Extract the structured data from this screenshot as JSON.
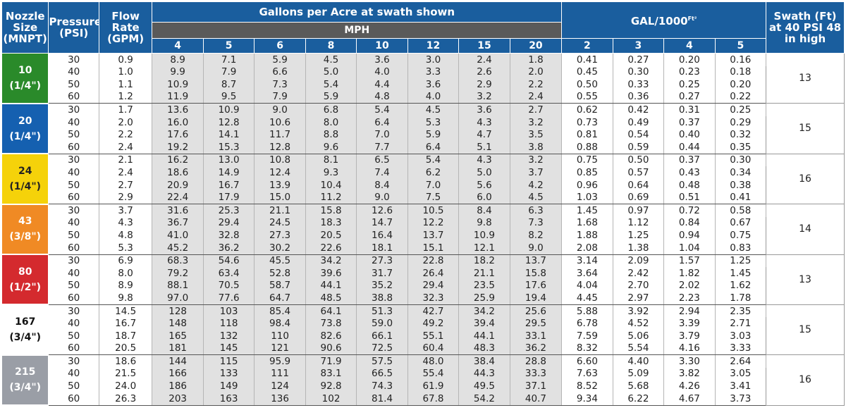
{
  "headers": {
    "nozzle_size": "Nozzle Size (MNPT)",
    "pressure": "Pressure (PSI)",
    "flow_rate": "Flow Rate (GPM)",
    "gpa_group": "Gallons per Acre at swath shown",
    "mph": "MPH",
    "gal1000": "GAL/1000",
    "gal1000_sup": "Ft²",
    "swath": "Swath (Ft) at 40 PSI 48 in high",
    "mph_speeds": [
      "4",
      "5",
      "6",
      "8",
      "10",
      "12",
      "15",
      "20"
    ],
    "gal1000_speeds": [
      "2",
      "3",
      "4",
      "5"
    ]
  },
  "colors": {
    "header_blue": "#1a5e9e",
    "mph_band_gray": "#5a5a5a",
    "gpa_shade": "#e1e1e1"
  },
  "nozzles": [
    {
      "size": "10",
      "thread": "(1/4\")",
      "color": "#2a8a2a",
      "text_color": "#ffffff",
      "swath": "13",
      "rows": [
        {
          "psi": "30",
          "gpm": "0.9",
          "gpa": [
            "8.9",
            "7.1",
            "5.9",
            "4.5",
            "3.6",
            "3.0",
            "2.4",
            "1.8"
          ],
          "gal1000": [
            "0.41",
            "0.27",
            "0.20",
            "0.16"
          ]
        },
        {
          "psi": "40",
          "gpm": "1.0",
          "gpa": [
            "9.9",
            "7.9",
            "6.6",
            "5.0",
            "4.0",
            "3.3",
            "2.6",
            "2.0"
          ],
          "gal1000": [
            "0.45",
            "0.30",
            "0.23",
            "0.18"
          ]
        },
        {
          "psi": "50",
          "gpm": "1.1",
          "gpa": [
            "10.9",
            "8.7",
            "7.3",
            "5.4",
            "4.4",
            "3.6",
            "2.9",
            "2.2"
          ],
          "gal1000": [
            "0.50",
            "0.33",
            "0.25",
            "0.20"
          ]
        },
        {
          "psi": "60",
          "gpm": "1.2",
          "gpa": [
            "11.9",
            "9.5",
            "7.9",
            "5.9",
            "4.8",
            "4.0",
            "3.2",
            "2.4"
          ],
          "gal1000": [
            "0.55",
            "0.36",
            "0.27",
            "0.22"
          ]
        }
      ]
    },
    {
      "size": "20",
      "thread": "(1/4\")",
      "color": "#1560b0",
      "text_color": "#ffffff",
      "swath": "15",
      "rows": [
        {
          "psi": "30",
          "gpm": "1.7",
          "gpa": [
            "13.6",
            "10.9",
            "9.0",
            "6.8",
            "5.4",
            "4.5",
            "3.6",
            "2.7"
          ],
          "gal1000": [
            "0.62",
            "0.42",
            "0.31",
            "0.25"
          ]
        },
        {
          "psi": "40",
          "gpm": "2.0",
          "gpa": [
            "16.0",
            "12.8",
            "10.6",
            "8.0",
            "6.4",
            "5.3",
            "4.3",
            "3.2"
          ],
          "gal1000": [
            "0.73",
            "0.49",
            "0.37",
            "0.29"
          ]
        },
        {
          "psi": "50",
          "gpm": "2.2",
          "gpa": [
            "17.6",
            "14.1",
            "11.7",
            "8.8",
            "7.0",
            "5.9",
            "4.7",
            "3.5"
          ],
          "gal1000": [
            "0.81",
            "0.54",
            "0.40",
            "0.32"
          ]
        },
        {
          "psi": "60",
          "gpm": "2.4",
          "gpa": [
            "19.2",
            "15.3",
            "12.8",
            "9.6",
            "7.7",
            "6.4",
            "5.1",
            "3.8"
          ],
          "gal1000": [
            "0.88",
            "0.59",
            "0.44",
            "0.35"
          ]
        }
      ]
    },
    {
      "size": "24",
      "thread": "(1/4\")",
      "color": "#f5d20a",
      "text_color": "#222222",
      "swath": "16",
      "rows": [
        {
          "psi": "30",
          "gpm": "2.1",
          "gpa": [
            "16.2",
            "13.0",
            "10.8",
            "8.1",
            "6.5",
            "5.4",
            "4.3",
            "3.2"
          ],
          "gal1000": [
            "0.75",
            "0.50",
            "0.37",
            "0.30"
          ]
        },
        {
          "psi": "40",
          "gpm": "2.4",
          "gpa": [
            "18.6",
            "14.9",
            "12.4",
            "9.3",
            "7.4",
            "6.2",
            "5.0",
            "3.7"
          ],
          "gal1000": [
            "0.85",
            "0.57",
            "0.43",
            "0.34"
          ]
        },
        {
          "psi": "50",
          "gpm": "2.7",
          "gpa": [
            "20.9",
            "16.7",
            "13.9",
            "10.4",
            "8.4",
            "7.0",
            "5.6",
            "4.2"
          ],
          "gal1000": [
            "0.96",
            "0.64",
            "0.48",
            "0.38"
          ]
        },
        {
          "psi": "60",
          "gpm": "2.9",
          "gpa": [
            "22.4",
            "17.9",
            "15.0",
            "11.2",
            "9.0",
            "7.5",
            "6.0",
            "4.5"
          ],
          "gal1000": [
            "1.03",
            "0.69",
            "0.51",
            "0.41"
          ]
        }
      ]
    },
    {
      "size": "43",
      "thread": "(3/8\")",
      "color": "#f08a24",
      "text_color": "#ffffff",
      "swath": "14",
      "rows": [
        {
          "psi": "30",
          "gpm": "3.7",
          "gpa": [
            "31.6",
            "25.3",
            "21.1",
            "15.8",
            "12.6",
            "10.5",
            "8.4",
            "6.3"
          ],
          "gal1000": [
            "1.45",
            "0.97",
            "0.72",
            "0.58"
          ]
        },
        {
          "psi": "40",
          "gpm": "4.3",
          "gpa": [
            "36.7",
            "29.4",
            "24.5",
            "18.3",
            "14.7",
            "12.2",
            "9.8",
            "7.3"
          ],
          "gal1000": [
            "1.68",
            "1.12",
            "0.84",
            "0.67"
          ]
        },
        {
          "psi": "50",
          "gpm": "4.8",
          "gpa": [
            "41.0",
            "32.8",
            "27.3",
            "20.5",
            "16.4",
            "13.7",
            "10.9",
            "8.2"
          ],
          "gal1000": [
            "1.88",
            "1.25",
            "0.94",
            "0.75"
          ]
        },
        {
          "psi": "60",
          "gpm": "5.3",
          "gpa": [
            "45.2",
            "36.2",
            "30.2",
            "22.6",
            "18.1",
            "15.1",
            "12.1",
            "9.0"
          ],
          "gal1000": [
            "2.08",
            "1.38",
            "1.04",
            "0.83"
          ]
        }
      ]
    },
    {
      "size": "80",
      "thread": "(1/2\")",
      "color": "#d42a2e",
      "text_color": "#ffffff",
      "swath": "13",
      "rows": [
        {
          "psi": "30",
          "gpm": "6.9",
          "gpa": [
            "68.3",
            "54.6",
            "45.5",
            "34.2",
            "27.3",
            "22.8",
            "18.2",
            "13.7"
          ],
          "gal1000": [
            "3.14",
            "2.09",
            "1.57",
            "1.25"
          ]
        },
        {
          "psi": "40",
          "gpm": "8.0",
          "gpa": [
            "79.2",
            "63.4",
            "52.8",
            "39.6",
            "31.7",
            "26.4",
            "21.1",
            "15.8"
          ],
          "gal1000": [
            "3.64",
            "2.42",
            "1.82",
            "1.45"
          ]
        },
        {
          "psi": "50",
          "gpm": "8.9",
          "gpa": [
            "88.1",
            "70.5",
            "58.7",
            "44.1",
            "35.2",
            "29.4",
            "23.5",
            "17.6"
          ],
          "gal1000": [
            "4.04",
            "2.70",
            "2.02",
            "1.62"
          ]
        },
        {
          "psi": "60",
          "gpm": "9.8",
          "gpa": [
            "97.0",
            "77.6",
            "64.7",
            "48.5",
            "38.8",
            "32.3",
            "25.9",
            "19.4"
          ],
          "gal1000": [
            "4.45",
            "2.97",
            "2.23",
            "1.78"
          ]
        }
      ]
    },
    {
      "size": "167",
      "thread": "(3/4\")",
      "color": "#ffffff",
      "text_color": "#111111",
      "swath": "15",
      "rows": [
        {
          "psi": "30",
          "gpm": "14.5",
          "gpa": [
            "128",
            "103",
            "85.4",
            "64.1",
            "51.3",
            "42.7",
            "34.2",
            "25.6"
          ],
          "gal1000": [
            "5.88",
            "3.92",
            "2.94",
            "2.35"
          ]
        },
        {
          "psi": "40",
          "gpm": "16.7",
          "gpa": [
            "148",
            "118",
            "98.4",
            "73.8",
            "59.0",
            "49.2",
            "39.4",
            "29.5"
          ],
          "gal1000": [
            "6.78",
            "4.52",
            "3.39",
            "2.71"
          ]
        },
        {
          "psi": "50",
          "gpm": "18.7",
          "gpa": [
            "165",
            "132",
            "110",
            "82.6",
            "66.1",
            "55.1",
            "44.1",
            "33.1"
          ],
          "gal1000": [
            "7.59",
            "5.06",
            "3.79",
            "3.03"
          ]
        },
        {
          "psi": "60",
          "gpm": "20.5",
          "gpa": [
            "181",
            "145",
            "121",
            "90.6",
            "72.5",
            "60.4",
            "48.3",
            "36.2"
          ],
          "gal1000": [
            "8.32",
            "5.54",
            "4.16",
            "3.33"
          ]
        }
      ]
    },
    {
      "size": "215",
      "thread": "(3/4\")",
      "color": "#9a9ea6",
      "text_color": "#ffffff",
      "swath": "16",
      "rows": [
        {
          "psi": "30",
          "gpm": "18.6",
          "gpa": [
            "144",
            "115",
            "95.9",
            "71.9",
            "57.5",
            "48.0",
            "38.4",
            "28.8"
          ],
          "gal1000": [
            "6.60",
            "4.40",
            "3.30",
            "2.64"
          ]
        },
        {
          "psi": "40",
          "gpm": "21.5",
          "gpa": [
            "166",
            "133",
            "111",
            "83.1",
            "66.5",
            "55.4",
            "44.3",
            "33.3"
          ],
          "gal1000": [
            "7.63",
            "5.09",
            "3.82",
            "3.05"
          ]
        },
        {
          "psi": "50",
          "gpm": "24.0",
          "gpa": [
            "186",
            "149",
            "124",
            "92.8",
            "74.3",
            "61.9",
            "49.5",
            "37.1"
          ],
          "gal1000": [
            "8.52",
            "5.68",
            "4.26",
            "3.41"
          ]
        },
        {
          "psi": "60",
          "gpm": "26.3",
          "gpa": [
            "203",
            "163",
            "136",
            "102",
            "81.4",
            "67.8",
            "54.2",
            "40.7"
          ],
          "gal1000": [
            "9.34",
            "6.22",
            "4.67",
            "3.73"
          ]
        }
      ]
    }
  ]
}
